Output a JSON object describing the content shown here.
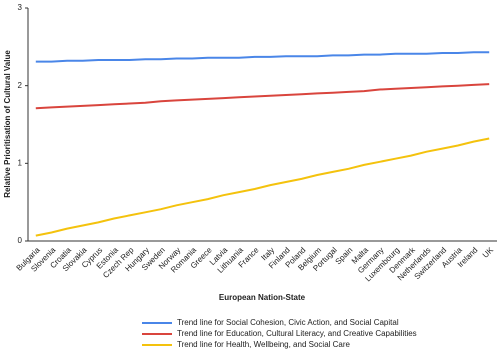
{
  "chart_data": {
    "type": "line",
    "x_label": "European Nation-State",
    "y_label": "Relative Prioritisation of Cultural Value",
    "categories": [
      "Bulgaria",
      "Slovenia",
      "Croatia",
      "Slovakia",
      "Cyprus",
      "Estonia",
      "Czech Rep",
      "Hungary",
      "Sweden",
      "Norway",
      "Romania",
      "Greece",
      "Latvia",
      "Lithuania",
      "France",
      "Italy",
      "Finland",
      "Poland",
      "Belgium",
      "Portugal",
      "Spain",
      "Malta",
      "Germany",
      "Luxembourg",
      "Denmark",
      "Netherlands",
      "Switzerland",
      "Austria",
      "Ireland",
      "UK"
    ],
    "series": [
      {
        "name": "Trend line for Social Cohesion, Civic Action, and Social Capital",
        "color": "#4a86e8",
        "values": [
          2.31,
          2.31,
          2.32,
          2.32,
          2.33,
          2.33,
          2.33,
          2.34,
          2.34,
          2.35,
          2.35,
          2.36,
          2.36,
          2.36,
          2.37,
          2.37,
          2.38,
          2.38,
          2.38,
          2.39,
          2.39,
          2.4,
          2.4,
          2.41,
          2.41,
          2.41,
          2.42,
          2.42,
          2.43,
          2.43
        ]
      },
      {
        "name": "Trend line for Education, Cultural Literacy, and Creative Capabilities",
        "color": "#d9453d",
        "values": [
          1.71,
          1.72,
          1.73,
          1.74,
          1.75,
          1.76,
          1.77,
          1.78,
          1.8,
          1.81,
          1.82,
          1.83,
          1.84,
          1.85,
          1.86,
          1.87,
          1.88,
          1.89,
          1.9,
          1.91,
          1.92,
          1.93,
          1.95,
          1.96,
          1.97,
          1.98,
          1.99,
          2.0,
          2.01,
          2.02
        ]
      },
      {
        "name": "Trend line for Health, Wellbeing, and Social Care",
        "color": "#f4c20d",
        "values": [
          0.07,
          0.11,
          0.16,
          0.2,
          0.24,
          0.29,
          0.33,
          0.37,
          0.41,
          0.46,
          0.5,
          0.54,
          0.59,
          0.63,
          0.67,
          0.72,
          0.76,
          0.8,
          0.85,
          0.89,
          0.93,
          0.98,
          1.02,
          1.06,
          1.1,
          1.15,
          1.19,
          1.23,
          1.28,
          1.32
        ]
      }
    ],
    "ylim": [
      0,
      3
    ],
    "yticks": [
      0,
      1,
      2,
      3
    ]
  }
}
